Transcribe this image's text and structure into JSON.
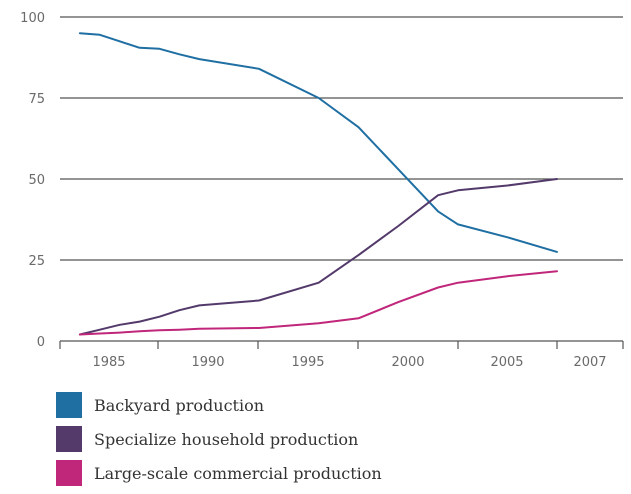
{
  "chart_data": {
    "type": "line",
    "x": [
      1986,
      1987,
      1988,
      1989,
      1990,
      1991,
      1992,
      1995,
      1998,
      2000,
      2002,
      2004,
      2005,
      2006,
      2007
    ],
    "series": [
      {
        "name": "Backyard production",
        "color": "#1f6fa3",
        "values": [
          95,
          94.5,
          92.5,
          90.5,
          90.2,
          88.5,
          87,
          84,
          75,
          66,
          53,
          40,
          36,
          32,
          27.5
        ]
      },
      {
        "name": "Specialize household production",
        "color": "#533a6b",
        "values": [
          2,
          3.5,
          5,
          6,
          7.5,
          9.5,
          11,
          12.5,
          18,
          26.5,
          35.5,
          45,
          46.5,
          48,
          50
        ]
      },
      {
        "name": "Large-scale commercial production",
        "color": "#c0267a",
        "values": [
          2,
          2.3,
          2.6,
          3,
          3.3,
          3.5,
          3.8,
          4,
          5.5,
          7,
          12,
          16.5,
          18,
          20,
          21.5
        ]
      }
    ],
    "xticks": [
      "1985",
      "1990",
      "1995",
      "2000",
      "2005",
      "2007"
    ],
    "yticks": [
      "0",
      "25",
      "50",
      "75",
      "100"
    ],
    "ylim": [
      0,
      100
    ],
    "grid": true,
    "legend_position": "bottom-left"
  }
}
